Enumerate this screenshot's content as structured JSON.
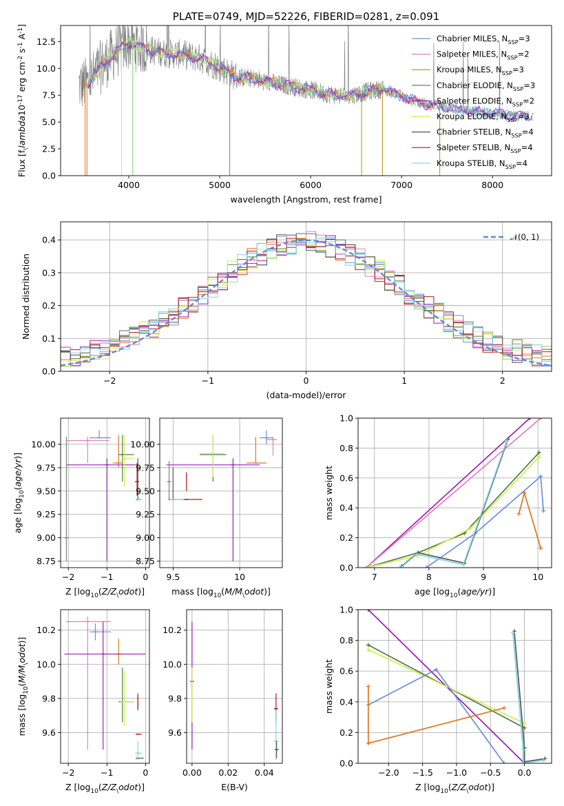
{
  "colors": {
    "Chabrier MILES": "#6a8fdc",
    "Salpeter MILES": "#e47fb6",
    "Kroupa MILES": "#b88a12",
    "Chabrier ELODIE": "#4f7a4b",
    "Salpeter ELODIE": "#9a1fb0",
    "Kroupa ELODIE": "#d2ee4c",
    "Chabrier STELIB": "#555555",
    "Salpeter STELIB": "#b01818",
    "Kroupa STELIB": "#7fd6e0",
    "extra": "#e2741b",
    "spectrum": "#808080",
    "normal": "#5b8bd9"
  },
  "chart_data": [
    {
      "id": "spectrum",
      "type": "line",
      "title": "PLATE=0749, MJD=52226, FIBERID=0281, z=0.091",
      "xlabel": "wavelength [Angstrom, rest frame]",
      "ylabel": "Flux [f$_\\lambda$10$^{-17}$ erg cm$^{-2}$ s$^{-1}$ A$^{-1}$]",
      "xlim": [
        3250,
        8650
      ],
      "ylim": [
        0,
        14
      ],
      "xticks": [
        4000,
        5000,
        6000,
        7000,
        8000
      ],
      "yticks": [
        0.0,
        2.5,
        5.0,
        7.5,
        10.0,
        12.5
      ],
      "ytick_labels": [
        "0.0",
        "2.5",
        "5.0",
        "7.5",
        "10.0",
        "12.5"
      ],
      "grid": false,
      "legend_position": "upper right",
      "legend": [
        "Chabrier MILES, N$_{SSP}$=3",
        "Salpeter MILES, N$_{SSP}$=2",
        "Kroupa MILES, N$_{SSP}$=3",
        "Chabrier ELODIE, N$_{SSP}$=3",
        "Salpeter ELODIE, N$_{SSP}$=2",
        "Kroupa ELODIE, N$_{SSP}$=3",
        "Chabrier STELIB, N$_{SSP}$=4",
        "Salpeter STELIB, N$_{SSP}$=4",
        "Kroupa STELIB, N$_{SSP}$=4"
      ],
      "continuum": {
        "x": [
          3450,
          3550,
          3700,
          3850,
          4000,
          4200,
          4400,
          4600,
          4800,
          5000,
          5200,
          5400,
          5600,
          5800,
          6000,
          6200,
          6400,
          6600,
          6800,
          7000,
          7200,
          7400,
          7600,
          7800,
          8000,
          8200,
          8400,
          8600
        ],
        "y": [
          8.4,
          8.6,
          10.2,
          11.5,
          12.4,
          11.8,
          11.4,
          11.3,
          10.9,
          10.1,
          9.2,
          9.0,
          8.6,
          8.3,
          8.0,
          7.6,
          7.4,
          7.8,
          8.1,
          7.4,
          6.8,
          6.5,
          6.2,
          6.0,
          5.8,
          5.6,
          5.5,
          5.4
        ]
      }
    },
    {
      "id": "residuals",
      "type": "histogram",
      "xlabel": "(data-model)/error",
      "ylabel": "Normed distribution",
      "xlim": [
        -2.5,
        2.5
      ],
      "ylim": [
        0,
        0.455
      ],
      "xticks": [
        -2,
        -1,
        0,
        1,
        2
      ],
      "yticks": [
        0.0,
        0.1,
        0.2,
        0.3,
        0.4
      ],
      "ytick_labels": [
        "0.0",
        "0.1",
        "0.2",
        "0.3",
        "0.4"
      ],
      "grid": true,
      "legend_position": "upper right",
      "legend": [
        "$\\mathcal{N}(0,1)$"
      ],
      "bin_width": 0.1
    },
    {
      "id": "age_vs_Z",
      "type": "errorbar",
      "xlabel": "Z [log$_{10}$($Z/Z_\\odot$)]",
      "ylabel": "age  [log$_{10}$($age/yr$)]",
      "xlim": [
        -2.2,
        0.1
      ],
      "ylim": [
        8.68,
        10.28
      ],
      "xticks": [
        -2,
        -1,
        0
      ],
      "yticks": [
        8.75,
        9.0,
        9.25,
        9.5,
        9.75,
        10.0
      ],
      "ytick_labels": [
        "8.75",
        "9.00",
        "9.25",
        "9.50",
        "9.75",
        "10.00"
      ],
      "grid": true,
      "points": [
        {
          "c": "Chabrier MILES",
          "x": -1.2,
          "y": 10.07,
          "xe": [
            -1.45,
            -0.9
          ],
          "ye": [
            10.07,
            10.15
          ]
        },
        {
          "c": "Salpeter MILES",
          "x": -1.5,
          "y": 10.04,
          "xe": [
            -2.05,
            -0.95
          ],
          "ye": [
            9.8,
            10.08
          ]
        },
        {
          "c": "extra",
          "x": -0.7,
          "y": 9.8,
          "xe": [
            -0.85,
            -0.6
          ],
          "ye": [
            9.75,
            10.1
          ]
        },
        {
          "c": "Chabrier ELODIE",
          "x": -0.6,
          "y": 9.89,
          "xe": [
            -0.7,
            -0.3
          ],
          "ye": [
            9.6,
            10.1
          ]
        },
        {
          "c": "Salpeter ELODIE",
          "x": -1.0,
          "y": 9.78,
          "xe": [
            -2.05,
            -0.2
          ],
          "ye": [
            8.75,
            9.85
          ]
        },
        {
          "c": "Kroupa ELODIE",
          "x": -0.55,
          "y": 9.85,
          "xe": [
            -0.6,
            -0.3
          ],
          "ye": [
            9.55,
            10.1
          ]
        },
        {
          "c": "Chabrier STELIB",
          "x": -0.2,
          "y": 9.41,
          "xe": [
            -0.25,
            -0.1
          ],
          "ye": [
            9.4,
            9.85
          ]
        },
        {
          "c": "Salpeter STELIB",
          "x": -0.22,
          "y": 9.6,
          "xe": [
            -0.22,
            -0.22
          ],
          "ye": [
            9.45,
            9.8
          ]
        },
        {
          "c": "Kroupa STELIB",
          "x": -0.18,
          "y": 9.41,
          "xe": [
            -0.25,
            -0.1
          ],
          "ye": [
            9.4,
            9.42
          ]
        },
        {
          "c": "spectrum",
          "x": -2.05,
          "y": 9.0,
          "xe": [
            -2.05,
            -2.05
          ],
          "ye": [
            8.75,
            10.08
          ]
        }
      ]
    },
    {
      "id": "age_vs_mass",
      "type": "errorbar",
      "xlabel": "mass [log$_{10}$($M/M_\\odot$)]",
      "ylabel": "",
      "xlim": [
        9.4,
        10.32
      ],
      "ylim": [
        8.68,
        10.28
      ],
      "xticks": [
        9.5,
        10.0
      ],
      "yticks": [
        8.75,
        9.0,
        9.25,
        9.5,
        9.75,
        10.0
      ],
      "ytick_labels": [
        "8.75",
        "9.00",
        "9.25",
        "9.50",
        "9.75",
        "10.00"
      ],
      "grid": true,
      "points": [
        {
          "c": "Chabrier MILES",
          "x": 10.2,
          "y": 10.07,
          "xe": [
            10.15,
            10.25
          ],
          "ye": [
            10.0,
            10.15
          ]
        },
        {
          "c": "Salpeter MILES",
          "x": 10.25,
          "y": 10.05,
          "xe": [
            10.2,
            10.28
          ],
          "ye": [
            9.88,
            10.08
          ]
        },
        {
          "c": "extra",
          "x": 10.12,
          "y": 9.8,
          "xe": [
            10.05,
            10.2
          ],
          "ye": [
            9.8,
            10.08
          ]
        },
        {
          "c": "Chabrier ELODIE",
          "x": 9.8,
          "y": 9.89,
          "xe": [
            9.7,
            9.9
          ],
          "ye": [
            9.6,
            10.1
          ]
        },
        {
          "c": "Salpeter ELODIE",
          "x": 9.95,
          "y": 9.78,
          "xe": [
            9.45,
            10.15
          ],
          "ye": [
            8.75,
            9.85
          ]
        },
        {
          "c": "Kroupa ELODIE",
          "x": 9.8,
          "y": 9.9,
          "xe": [
            9.7,
            9.88
          ],
          "ye": [
            9.65,
            10.1
          ]
        },
        {
          "c": "Chabrier STELIB",
          "x": 9.5,
          "y": 9.41,
          "xe": [
            9.47,
            9.55
          ],
          "ye": [
            9.4,
            9.75
          ]
        },
        {
          "c": "Salpeter STELIB",
          "x": 9.6,
          "y": 9.41,
          "xe": [
            9.55,
            9.72
          ],
          "ye": [
            9.5,
            9.7
          ]
        },
        {
          "c": "Kroupa STELIB",
          "x": 9.5,
          "y": 9.41,
          "xe": [
            9.46,
            9.58
          ],
          "ye": [
            9.4,
            9.42
          ]
        },
        {
          "c": "spectrum",
          "x": 9.47,
          "y": 9.6,
          "xe": [
            9.47,
            9.47
          ],
          "ye": [
            9.4,
            9.82
          ]
        }
      ]
    },
    {
      "id": "weight_vs_age",
      "type": "line",
      "xlabel": "age  [log$_{10}$($age/yr$)]",
      "ylabel": "mass weight",
      "xlim": [
        6.7,
        10.25
      ],
      "ylim": [
        0,
        1
      ],
      "xticks": [
        7,
        8,
        9,
        10
      ],
      "yticks": [
        0.0,
        0.2,
        0.4,
        0.6,
        0.8,
        1.0
      ],
      "ytick_labels": [
        "0.0",
        "0.2",
        "0.4",
        "0.6",
        "0.8",
        "1.0"
      ],
      "grid": true,
      "series": [
        {
          "c": "Salpeter ELODIE",
          "x": [
            6.85,
            9.85
          ],
          "y": [
            0.0,
            1.0
          ]
        },
        {
          "c": "Salpeter MILES",
          "x": [
            6.85,
            10.05
          ],
          "y": [
            0.0,
            1.0
          ]
        },
        {
          "c": "Chabrier ELODIE",
          "x": [
            6.85,
            7.8,
            8.65,
            10.02
          ],
          "y": [
            0.0,
            0.1,
            0.23,
            0.77
          ]
        },
        {
          "c": "Kroupa ELODIE",
          "x": [
            6.85,
            7.8,
            8.75,
            10.02
          ],
          "y": [
            0.0,
            0.08,
            0.26,
            0.74
          ]
        },
        {
          "c": "Chabrier MILES",
          "x": [
            7.95,
            8.85,
            10.05,
            10.1
          ],
          "y": [
            0.0,
            0.23,
            0.61,
            0.38
          ]
        },
        {
          "c": "extra",
          "x": [
            9.65,
            9.75,
            10.05
          ],
          "y": [
            0.36,
            0.5,
            0.13
          ]
        },
        {
          "c": "Chabrier STELIB",
          "x": [
            7.5,
            7.8,
            8.65,
            9.45
          ],
          "y": [
            0.01,
            0.1,
            0.03,
            0.86
          ]
        },
        {
          "c": "Kroupa STELIB",
          "x": [
            7.48,
            7.78,
            8.63,
            9.43
          ],
          "y": [
            0.0,
            0.09,
            0.02,
            0.85
          ]
        }
      ]
    },
    {
      "id": "mass_vs_Z",
      "type": "errorbar",
      "xlabel": "Z [log$_{10}$($Z/Z_\\odot$)]",
      "ylabel": "mass [log$_{10}$($M/M_\\odot$)]",
      "xlim": [
        -2.2,
        0.1
      ],
      "ylim": [
        9.42,
        10.32
      ],
      "xticks": [
        -2,
        -1,
        0
      ],
      "yticks": [
        9.6,
        9.8,
        10.0,
        10.2
      ],
      "ytick_labels": [
        "9.6",
        "9.8",
        "10.0",
        "10.2"
      ],
      "grid": true,
      "points": [
        {
          "c": "Chabrier MILES",
          "x": -1.3,
          "y": 10.19,
          "xe": [
            -1.45,
            -0.9
          ],
          "ye": [
            10.14,
            10.24
          ]
        },
        {
          "c": "Salpeter MILES",
          "x": -1.5,
          "y": 10.25,
          "xe": [
            -2.05,
            -0.9
          ],
          "ye": [
            9.5,
            10.28
          ]
        },
        {
          "c": "extra",
          "x": -0.7,
          "y": 10.06,
          "xe": [
            -0.8,
            -0.6
          ],
          "ye": [
            10.0,
            10.15
          ]
        },
        {
          "c": "Chabrier ELODIE",
          "x": -0.6,
          "y": 9.78,
          "xe": [
            -0.7,
            -0.3
          ],
          "ye": [
            9.66,
            9.98
          ]
        },
        {
          "c": "Salpeter ELODIE",
          "x": -1.1,
          "y": 10.06,
          "xe": [
            -2.1,
            0.0
          ],
          "ye": [
            9.5,
            10.25
          ]
        },
        {
          "c": "Kroupa ELODIE",
          "x": -0.55,
          "y": 9.78,
          "xe": [
            -0.65,
            -0.3
          ],
          "ye": [
            9.64,
            9.96
          ]
        },
        {
          "c": "Chabrier STELIB",
          "x": -0.2,
          "y": 9.45,
          "xe": [
            -0.25,
            -0.05
          ],
          "ye": [
            9.73,
            9.83
          ]
        },
        {
          "c": "Salpeter STELIB",
          "x": -0.2,
          "y": 9.59,
          "xe": [
            -0.25,
            -0.1
          ],
          "ye": [
            9.74,
            9.82
          ]
        },
        {
          "c": "Kroupa STELIB",
          "x": -0.2,
          "y": 9.48,
          "xe": [
            -0.27,
            -0.1
          ],
          "ye": [
            9.44,
            9.55
          ]
        }
      ]
    },
    {
      "id": "mass_vs_ebv",
      "type": "errorbar",
      "xlabel": "E(B-V)",
      "ylabel": "",
      "xlim": [
        -0.003,
        0.05
      ],
      "ylim": [
        9.42,
        10.32
      ],
      "xticks": [
        0.0,
        0.02,
        0.04
      ],
      "xtick_labels": [
        "0.00",
        "0.02",
        "0.04"
      ],
      "yticks": [
        9.6,
        9.8,
        10.0,
        10.2
      ],
      "ytick_labels": [
        "9.6",
        "9.8",
        "10.0",
        "10.2"
      ],
      "grid": true,
      "points": [
        {
          "c": "Salpeter ELODIE",
          "x": 0.0,
          "y": 9.9,
          "xe": [
            0.0,
            0.0
          ],
          "ye": [
            9.5,
            10.25
          ]
        },
        {
          "c": "Kroupa ELODIE",
          "x": 0.0,
          "y": 9.8,
          "xe": [
            0.0,
            0.0
          ],
          "ye": [
            9.66,
            9.98
          ]
        },
        {
          "c": "Salpeter STELIB",
          "x": 0.0465,
          "y": 9.74,
          "xe": [
            0.0465,
            0.0465
          ],
          "ye": [
            9.66,
            9.83
          ]
        },
        {
          "c": "Kroupa STELIB",
          "x": 0.0465,
          "y": 9.55,
          "xe": [
            0.0465,
            0.0465
          ],
          "ye": [
            9.44,
            9.73
          ]
        },
        {
          "c": "Chabrier STELIB",
          "x": 0.0468,
          "y": 9.5,
          "xe": [
            0.0468,
            0.0468
          ],
          "ye": [
            9.45,
            9.55
          ]
        }
      ]
    },
    {
      "id": "weight_vs_Z",
      "type": "line",
      "xlabel": "Z [log$_{10}$($Z/Z_\\odot$)]",
      "ylabel": "mass weight",
      "xlim": [
        -2.45,
        0.4
      ],
      "ylim": [
        0,
        1
      ],
      "xticks": [
        -2.0,
        -1.5,
        -1.0,
        -0.5,
        0.0
      ],
      "xtick_labels": [
        "−2.0",
        "−1.5",
        "−1.0",
        "−0.5",
        "0.0"
      ],
      "yticks": [
        0.0,
        0.2,
        0.4,
        0.6,
        0.8,
        1.0
      ],
      "ytick_labels": [
        "0.0",
        "0.2",
        "0.4",
        "0.6",
        "0.8",
        "1.0"
      ],
      "grid": true,
      "series": [
        {
          "c": "Salpeter ELODIE",
          "x": [
            -2.3,
            0.0
          ],
          "y": [
            1.0,
            0.0
          ]
        },
        {
          "c": "Chabrier ELODIE",
          "x": [
            -2.3,
            0.0
          ],
          "y": [
            0.77,
            0.23
          ]
        },
        {
          "c": "Kroupa ELODIE",
          "x": [
            -2.3,
            0.0
          ],
          "y": [
            0.74,
            0.26
          ]
        },
        {
          "c": "Chabrier MILES",
          "x": [
            -2.3,
            -1.3,
            -0.3
          ],
          "y": [
            0.38,
            0.61,
            0.0
          ]
        },
        {
          "c": "extra",
          "x": [
            -2.3,
            -2.3,
            -0.3
          ],
          "y": [
            0.5,
            0.13,
            0.36
          ]
        },
        {
          "c": "Chabrier STELIB",
          "x": [
            -0.15,
            0.0,
            0.0,
            0.3
          ],
          "y": [
            0.86,
            0.1,
            0.01,
            0.03
          ]
        },
        {
          "c": "Kroupa STELIB",
          "x": [
            -0.17,
            -0.02,
            -0.02,
            0.28
          ],
          "y": [
            0.85,
            0.09,
            0.0,
            0.02
          ]
        }
      ]
    }
  ]
}
